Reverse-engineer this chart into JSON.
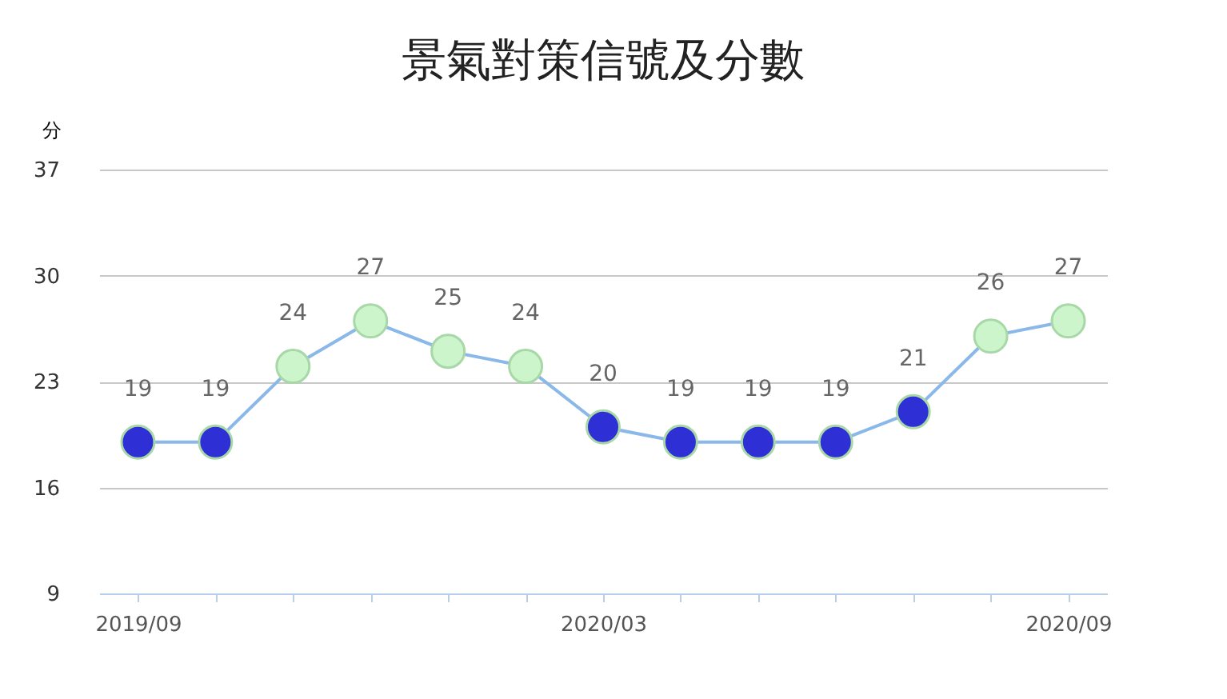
{
  "chart_data": {
    "type": "line",
    "title": "景氣對策信號及分數",
    "ylabel": "分",
    "categories": [
      "2019/09",
      null,
      null,
      null,
      null,
      null,
      "2020/03",
      null,
      null,
      null,
      null,
      null,
      "2020/09"
    ],
    "series": [
      {
        "color": "#8ab8e8",
        "values": [
          19,
          19,
          24,
          27,
          25,
          24,
          20,
          19,
          19,
          19,
          21,
          26,
          27
        ],
        "colors": [
          "#2f2fd6",
          "#2f2fd6",
          "#ccf5cc",
          "#ccf5cc",
          "#ccf5cc",
          "#ccf5cc",
          "#2f2fd6",
          "#2f2fd6",
          "#2f2fd6",
          "#2f2fd6",
          "#2f2fd6",
          "#ccf5cc",
          "#ccf5cc"
        ]
      }
    ],
    "ylim": [
      9,
      37
    ],
    "yticks": [
      9,
      16,
      23,
      30,
      37
    ],
    "grid": "y",
    "data_labels": true,
    "marker": "circle"
  }
}
